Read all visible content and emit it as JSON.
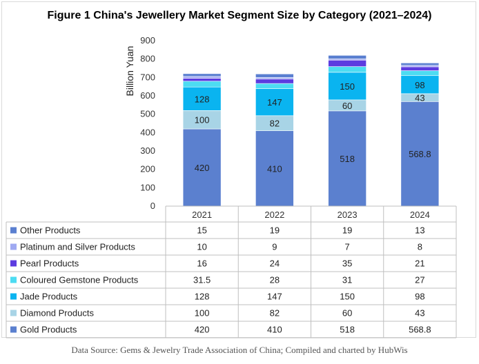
{
  "chart_data": {
    "type": "bar",
    "stacked": true,
    "title": "Figure 1 China's Jewellery Market Segment Size by Category (2021–2024)",
    "xlabel": "",
    "ylabel": "Billion Yuan",
    "ylim": [
      0,
      900
    ],
    "yticks": [
      0,
      100,
      200,
      300,
      400,
      500,
      600,
      700,
      800,
      900
    ],
    "categories": [
      "2021",
      "2022",
      "2023",
      "2024"
    ],
    "grid": false,
    "legend": "data-table",
    "labeled_series": [
      "Gold Products",
      "Diamond Products",
      "Jade Products"
    ],
    "series": [
      {
        "name": "Gold Products",
        "values": [
          420,
          410,
          518,
          568.8
        ],
        "labels": [
          "420",
          "410",
          "518",
          "568.8"
        ],
        "color": "#5b80cf"
      },
      {
        "name": "Diamond Products",
        "values": [
          100,
          82,
          60,
          43
        ],
        "labels": [
          "100",
          "82",
          "60",
          "43"
        ],
        "color": "#a8d4e6"
      },
      {
        "name": "Jade Products",
        "values": [
          128,
          147,
          150,
          98
        ],
        "labels": [
          "128",
          "147",
          "150",
          "98"
        ],
        "color": "#0ab4f0"
      },
      {
        "name": "Coloured Gemstone Products",
        "values": [
          31.5,
          28,
          31,
          27
        ],
        "labels": [
          "31.5",
          "28",
          "31",
          "27"
        ],
        "color": "#4ddcf2"
      },
      {
        "name": "Pearl Products",
        "values": [
          16,
          24,
          35,
          21
        ],
        "labels": [
          "16",
          "24",
          "35",
          "21"
        ],
        "color": "#5c3ce0"
      },
      {
        "name": "Platinum and Silver Products",
        "values": [
          10,
          9,
          7,
          8
        ],
        "labels": [
          "10",
          "9",
          "7",
          "8"
        ],
        "color": "#9fa9f2"
      },
      {
        "name": "Other Products",
        "values": [
          15,
          19,
          19,
          13
        ],
        "labels": [
          "15",
          "19",
          "19",
          "13"
        ],
        "color": "#5a7fd0"
      }
    ]
  },
  "source_note": "Data Source: Gems & Jewelry Trade Association of China; Compiled and charted by HubWis"
}
